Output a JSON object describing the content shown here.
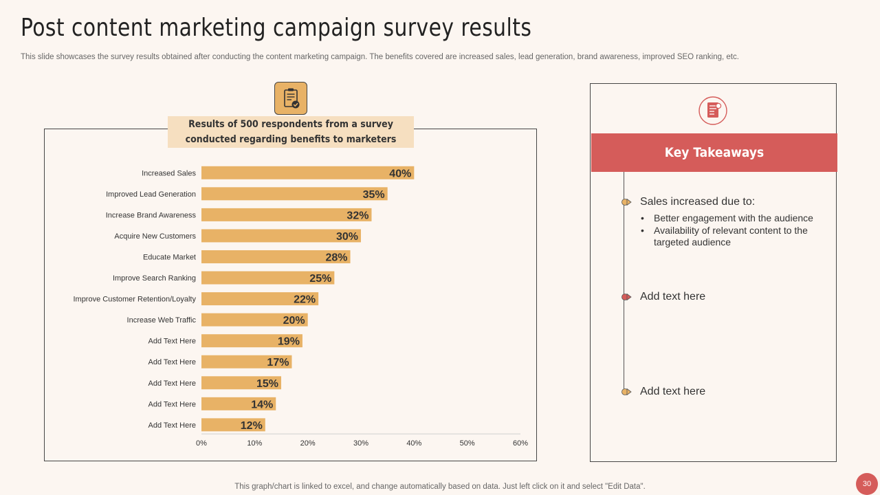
{
  "title": "Post content marketing campaign survey results",
  "subtitle": "This slide showcases the survey results obtained after conducting the content marketing campaign. The benefits covered are increased sales, lead generation, brand awareness, improved SEO ranking, etc.",
  "banner": {
    "line1": "Results of 500 respondents from a survey",
    "line2": "conducted regarding benefits to marketers"
  },
  "chart_data": {
    "type": "bar",
    "orientation": "horizontal",
    "title": "Results of 500 respondents from a survey conducted regarding benefits to marketers",
    "categories": [
      "Increased Sales",
      "Improved Lead Generation",
      "Increase Brand Awareness",
      "Acquire New Customers",
      "Educate Market",
      "Improve Search Ranking",
      "Improve Customer Retention/Loyalty",
      "Increase Web Traffic",
      "Add Text Here",
      "Add Text Here",
      "Add Text Here",
      "Add Text Here",
      "Add Text Here"
    ],
    "values": [
      40,
      35,
      32,
      30,
      28,
      25,
      22,
      20,
      19,
      17,
      15,
      14,
      12
    ],
    "value_labels": [
      "40%",
      "35%",
      "32%",
      "30%",
      "28%",
      "25%",
      "22%",
      "20%",
      "19%",
      "17%",
      "15%",
      "14%",
      "12%"
    ],
    "xlim": [
      0,
      60
    ],
    "x_ticks": [
      "0%",
      "10%",
      "20%",
      "30%",
      "40%",
      "50%",
      "60%"
    ],
    "xlabel": "",
    "ylabel": "",
    "bar_color": "#e8b266",
    "grid": false
  },
  "key_takeaways": {
    "header": "Key Takeaways",
    "item1": {
      "title": "Sales increased due to:",
      "bullets": [
        "Better engagement with the audience",
        "Availability  of relevant content to the targeted audience"
      ]
    },
    "item2": "Add text here",
    "item3": "Add text here"
  },
  "colors": {
    "accent_red": "#d55c5a",
    "accent_orange": "#e8b266",
    "background": "#fcf6f1"
  },
  "footer": "This graph/chart is linked to excel,  and change automatically based on data. Just left click on it and select \"Edit Data\".",
  "page_number": "30"
}
